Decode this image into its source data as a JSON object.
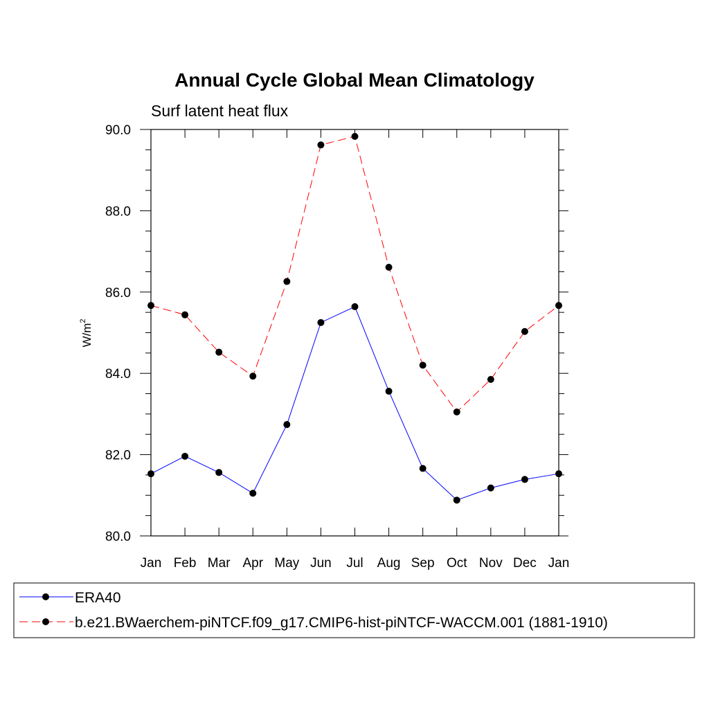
{
  "chart_data": {
    "type": "line",
    "title": "Annual Cycle Global Mean Climatology",
    "subtitle": "Surf latent heat flux",
    "ylabel": "W/m",
    "ylabel_superscript": "2",
    "xlabel": "",
    "categories": [
      "Jan",
      "Feb",
      "Mar",
      "Apr",
      "May",
      "Jun",
      "Jul",
      "Aug",
      "Sep",
      "Oct",
      "Nov",
      "Dec",
      "Jan"
    ],
    "ylim": [
      80.0,
      90.0
    ],
    "yticks": [
      "80.0",
      "82.0",
      "84.0",
      "86.0",
      "88.0",
      "90.0"
    ],
    "grid": false,
    "legend_placement": "bottom",
    "series": [
      {
        "name": "ERA40",
        "color": "#0000ff",
        "line_style": "solid",
        "marker": "filled-circle",
        "values": [
          81.53,
          81.96,
          81.56,
          81.05,
          82.74,
          85.25,
          85.64,
          83.56,
          81.66,
          80.88,
          81.18,
          81.39,
          81.53
        ]
      },
      {
        "name": "b.e21.BWaerchem-piNTCF.f09_g17.CMIP6-hist-piNTCF-WACCM.001 (1881-1910)",
        "color": "#ff0000",
        "line_style": "dashed",
        "marker": "filled-circle",
        "values": [
          85.67,
          85.44,
          84.52,
          83.93,
          86.26,
          89.62,
          89.83,
          86.61,
          84.2,
          83.05,
          83.85,
          85.03,
          85.67
        ]
      }
    ]
  }
}
